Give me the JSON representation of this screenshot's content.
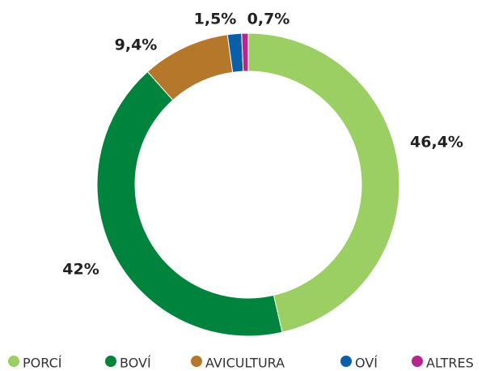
{
  "chart_data": {
    "type": "donut",
    "categories": [
      "PORCÍ",
      "BOVÍ",
      "AVICULTURA",
      "OVÍ",
      "ALTRES"
    ],
    "values": [
      46.4,
      42,
      9.4,
      1.5,
      0.7
    ],
    "value_labels": [
      "46,4%",
      "42%",
      "9,4%",
      "1,5%",
      "0,7%"
    ],
    "colors": [
      "#9bcf63",
      "#00843d",
      "#b5772a",
      "#0a5fa8",
      "#b5268f"
    ],
    "legend": "bottom"
  }
}
